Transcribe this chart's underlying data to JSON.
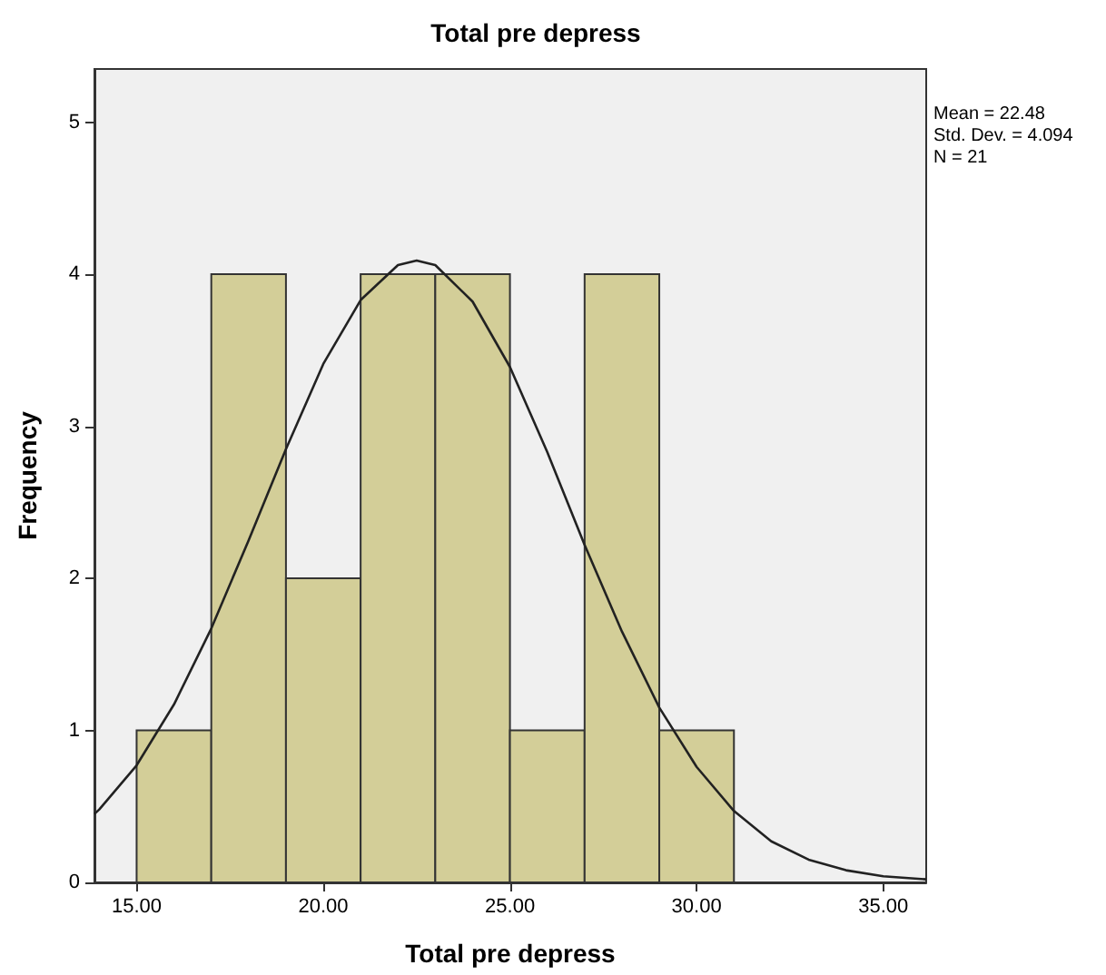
{
  "chart_data": {
    "type": "histogram",
    "title": "Total pre depress",
    "xlabel": "Total pre depress",
    "ylabel": "Frequency",
    "bins": [
      15,
      17,
      19,
      21,
      23,
      25,
      27,
      29,
      31
    ],
    "values": [
      1,
      4,
      2,
      4,
      4,
      1,
      4,
      1
    ],
    "color": "#d3ce98",
    "series": [
      {
        "type": "line",
        "color": "#222222",
        "x": [
          13.87,
          14,
          15,
          16,
          17,
          18,
          19,
          20,
          21,
          22,
          22.5,
          23,
          24,
          25,
          26,
          27,
          28,
          29,
          30,
          31,
          32,
          33,
          34,
          35,
          36.15
        ],
        "values": [
          0.45,
          0.48,
          0.77,
          1.17,
          1.67,
          2.25,
          2.85,
          3.41,
          3.83,
          4.06,
          4.09,
          4.06,
          3.82,
          3.39,
          2.83,
          2.22,
          1.65,
          1.15,
          0.76,
          0.47,
          0.27,
          0.15,
          0.08,
          0.04,
          0.02
        ]
      }
    ],
    "marker": "none",
    "xlim": [
      13.87,
      36.15
    ],
    "xticks": [
      {
        "value": 15,
        "label": "15.00"
      },
      {
        "value": 20,
        "label": "20.00"
      },
      {
        "value": 25,
        "label": "25.00"
      },
      {
        "value": 30,
        "label": "30.00"
      },
      {
        "value": 35,
        "label": "35.00"
      }
    ],
    "ylim": [
      0,
      5.35
    ],
    "yticks": [
      0,
      1,
      2,
      3,
      4,
      5
    ],
    "grid": false,
    "annotations": [
      "Mean = 22.48",
      "Std. Dev. = 4.094",
      "N = 21"
    ]
  }
}
